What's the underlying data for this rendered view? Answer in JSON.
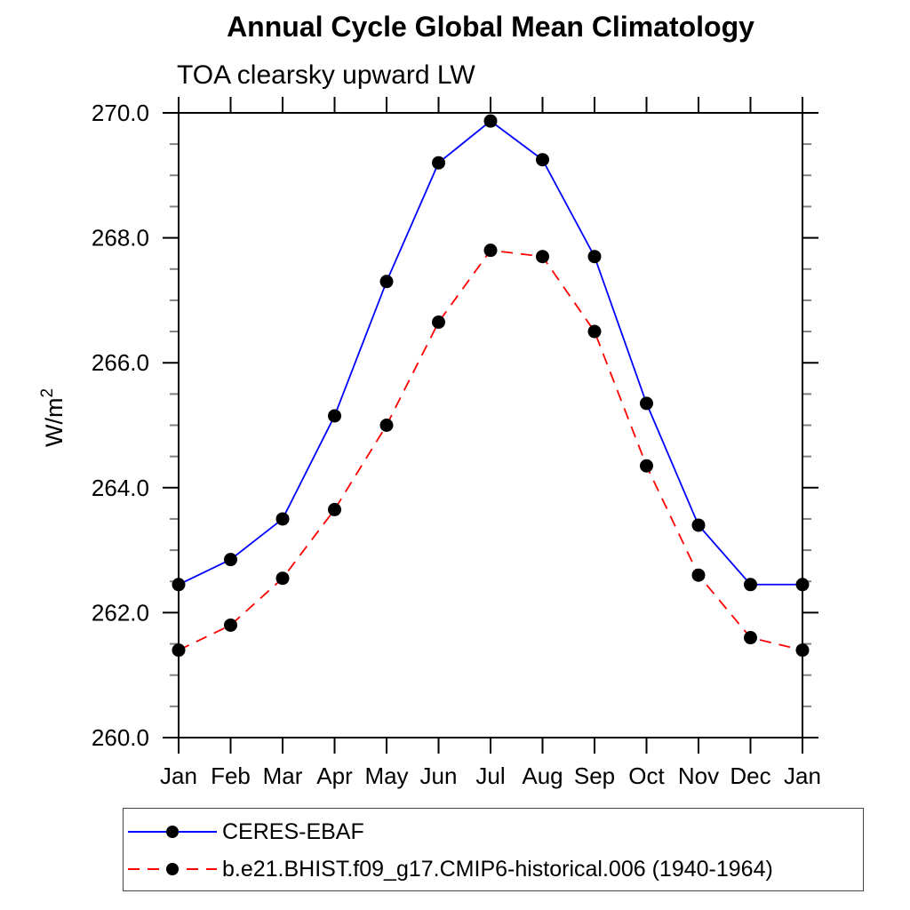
{
  "chart_data": {
    "type": "line",
    "title": "Annual Cycle Global Mean Climatology",
    "subtitle": "TOA clearsky upward LW",
    "ylabel": "W/m2",
    "ylabel_base": "W/m",
    "ylabel_sup": "2",
    "x_categories": [
      "Jan",
      "Feb",
      "Mar",
      "Apr",
      "May",
      "Jun",
      "Jul",
      "Aug",
      "Sep",
      "Oct",
      "Nov",
      "Dec",
      "Jan"
    ],
    "ylim": [
      260.0,
      270.0
    ],
    "ytick_major_step": 2.0,
    "ytick_minor_step": 0.5,
    "ytick_labels": [
      "260.0",
      "262.0",
      "264.0",
      "266.0",
      "268.0",
      "270.0"
    ],
    "grid": false,
    "legend_position": "bottom-left",
    "axis_color": "#000000",
    "minor_tick_color": "#808080",
    "series": [
      {
        "name": "CERES-EBAF",
        "color": "#0000ff",
        "line_style": "solid",
        "marker": "circle",
        "marker_color": "#000000",
        "values": [
          262.45,
          262.85,
          263.5,
          265.15,
          267.3,
          269.2,
          269.87,
          269.25,
          267.7,
          265.35,
          263.4,
          262.45,
          262.45
        ]
      },
      {
        "name": "b.e21.BHIST.f09_g17.CMIP6-historical.006 (1940-1964)",
        "color": "#ff0000",
        "line_style": "dashed",
        "marker": "circle",
        "marker_color": "#000000",
        "values": [
          261.4,
          261.8,
          262.55,
          263.65,
          265.0,
          266.65,
          267.8,
          267.7,
          266.5,
          264.35,
          262.6,
          261.6,
          261.4
        ]
      }
    ]
  }
}
